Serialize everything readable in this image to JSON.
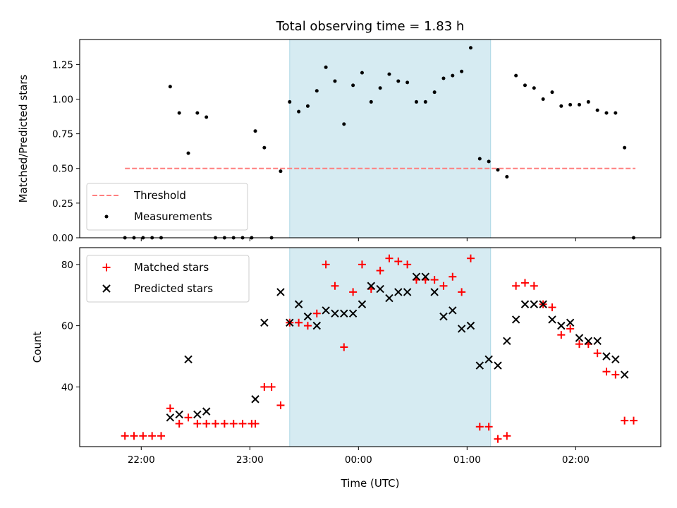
{
  "chart_data": {
    "title": "Total observing time = 1.83 h",
    "xlabel": "Time (UTC)",
    "x_tick_labels": [
      "22:00",
      "23:00",
      "00:00",
      "01:00",
      "02:00"
    ],
    "x_range": [
      "21:26",
      "02:47"
    ],
    "highlight_span": [
      "23:22",
      "01:13"
    ],
    "panels": [
      {
        "type": "scatter",
        "ylabel": "Matched/Predicted stars",
        "ylim": [
          0,
          1.43
        ],
        "y_tick_labels": [
          "0.00",
          "0.25",
          "0.50",
          "0.75",
          "1.00",
          "1.25"
        ],
        "legend_placement": "lower-left",
        "series": [
          {
            "name": "Threshold",
            "style": "dashed-line",
            "color": "#ff7f7f",
            "points": [
              {
                "x": "21:51",
                "y": 0.5
              },
              {
                "x": "02:33",
                "y": 0.5
              }
            ]
          },
          {
            "name": "Measurements",
            "style": "dot",
            "color": "#000000",
            "points": [
              {
                "x": "21:51",
                "y": 0.0
              },
              {
                "x": "21:56",
                "y": 0.0
              },
              {
                "x": "22:01",
                "y": 0.0
              },
              {
                "x": "22:06",
                "y": 0.0
              },
              {
                "x": "22:11",
                "y": 0.0
              },
              {
                "x": "22:16",
                "y": 1.09
              },
              {
                "x": "22:21",
                "y": 0.9
              },
              {
                "x": "22:26",
                "y": 0.61
              },
              {
                "x": "22:31",
                "y": 0.9
              },
              {
                "x": "22:36",
                "y": 0.87
              },
              {
                "x": "22:41",
                "y": 0.0
              },
              {
                "x": "22:46",
                "y": 0.0
              },
              {
                "x": "22:51",
                "y": 0.0
              },
              {
                "x": "22:56",
                "y": 0.0
              },
              {
                "x": "23:01",
                "y": 0.0
              },
              {
                "x": "23:03",
                "y": 0.77
              },
              {
                "x": "23:08",
                "y": 0.65
              },
              {
                "x": "23:12",
                "y": 0.0
              },
              {
                "x": "23:17",
                "y": 0.48
              },
              {
                "x": "23:22",
                "y": 0.98
              },
              {
                "x": "23:27",
                "y": 0.91
              },
              {
                "x": "23:32",
                "y": 0.95
              },
              {
                "x": "23:37",
                "y": 1.06
              },
              {
                "x": "23:42",
                "y": 1.23
              },
              {
                "x": "23:47",
                "y": 1.13
              },
              {
                "x": "23:52",
                "y": 0.82
              },
              {
                "x": "23:57",
                "y": 1.1
              },
              {
                "x": "00:02",
                "y": 1.19
              },
              {
                "x": "00:07",
                "y": 0.98
              },
              {
                "x": "00:12",
                "y": 1.08
              },
              {
                "x": "00:17",
                "y": 1.18
              },
              {
                "x": "00:22",
                "y": 1.13
              },
              {
                "x": "00:27",
                "y": 1.12
              },
              {
                "x": "00:32",
                "y": 0.98
              },
              {
                "x": "00:37",
                "y": 0.98
              },
              {
                "x": "00:42",
                "y": 1.05
              },
              {
                "x": "00:47",
                "y": 1.15
              },
              {
                "x": "00:52",
                "y": 1.17
              },
              {
                "x": "00:57",
                "y": 1.2
              },
              {
                "x": "01:02",
                "y": 1.37
              },
              {
                "x": "01:07",
                "y": 0.57
              },
              {
                "x": "01:12",
                "y": 0.55
              },
              {
                "x": "01:17",
                "y": 0.49
              },
              {
                "x": "01:22",
                "y": 0.44
              },
              {
                "x": "01:27",
                "y": 1.17
              },
              {
                "x": "01:32",
                "y": 1.1
              },
              {
                "x": "01:37",
                "y": 1.08
              },
              {
                "x": "01:42",
                "y": 1.0
              },
              {
                "x": "01:47",
                "y": 1.05
              },
              {
                "x": "01:52",
                "y": 0.95
              },
              {
                "x": "01:57",
                "y": 0.96
              },
              {
                "x": "02:02",
                "y": 0.96
              },
              {
                "x": "02:07",
                "y": 0.98
              },
              {
                "x": "02:12",
                "y": 0.92
              },
              {
                "x": "02:17",
                "y": 0.9
              },
              {
                "x": "02:22",
                "y": 0.9
              },
              {
                "x": "02:27",
                "y": 0.65
              },
              {
                "x": "02:32",
                "y": 0.0
              }
            ]
          }
        ]
      },
      {
        "type": "scatter",
        "ylabel": "Count",
        "ylim": [
          20.5,
          85.5
        ],
        "y_tick_labels": [
          "40",
          "60",
          "80"
        ],
        "legend_placement": "top-left",
        "series": [
          {
            "name": "Matched stars",
            "style": "plus",
            "color": "#ff0000",
            "points": [
              {
                "x": "21:51",
                "y": 24
              },
              {
                "x": "21:56",
                "y": 24
              },
              {
                "x": "22:01",
                "y": 24
              },
              {
                "x": "22:06",
                "y": 24
              },
              {
                "x": "22:11",
                "y": 24
              },
              {
                "x": "22:16",
                "y": 33
              },
              {
                "x": "22:21",
                "y": 28
              },
              {
                "x": "22:26",
                "y": 30
              },
              {
                "x": "22:31",
                "y": 28
              },
              {
                "x": "22:36",
                "y": 28
              },
              {
                "x": "22:41",
                "y": 28
              },
              {
                "x": "22:46",
                "y": 28
              },
              {
                "x": "22:51",
                "y": 28
              },
              {
                "x": "22:56",
                "y": 28
              },
              {
                "x": "23:01",
                "y": 28
              },
              {
                "x": "23:03",
                "y": 28
              },
              {
                "x": "23:08",
                "y": 40
              },
              {
                "x": "23:12",
                "y": 40
              },
              {
                "x": "23:17",
                "y": 34
              },
              {
                "x": "23:22",
                "y": 61
              },
              {
                "x": "23:27",
                "y": 61
              },
              {
                "x": "23:32",
                "y": 60
              },
              {
                "x": "23:37",
                "y": 64
              },
              {
                "x": "23:42",
                "y": 80
              },
              {
                "x": "23:47",
                "y": 73
              },
              {
                "x": "23:52",
                "y": 53
              },
              {
                "x": "23:57",
                "y": 71
              },
              {
                "x": "00:02",
                "y": 80
              },
              {
                "x": "00:07",
                "y": 72
              },
              {
                "x": "00:12",
                "y": 78
              },
              {
                "x": "00:17",
                "y": 82
              },
              {
                "x": "00:22",
                "y": 81
              },
              {
                "x": "00:27",
                "y": 80
              },
              {
                "x": "00:32",
                "y": 75
              },
              {
                "x": "00:37",
                "y": 75
              },
              {
                "x": "00:42",
                "y": 75
              },
              {
                "x": "00:47",
                "y": 73
              },
              {
                "x": "00:52",
                "y": 76
              },
              {
                "x": "00:57",
                "y": 71
              },
              {
                "x": "01:02",
                "y": 82
              },
              {
                "x": "01:07",
                "y": 27
              },
              {
                "x": "01:12",
                "y": 27
              },
              {
                "x": "01:17",
                "y": 23
              },
              {
                "x": "01:22",
                "y": 24
              },
              {
                "x": "01:27",
                "y": 73
              },
              {
                "x": "01:32",
                "y": 74
              },
              {
                "x": "01:37",
                "y": 73
              },
              {
                "x": "01:42",
                "y": 67
              },
              {
                "x": "01:47",
                "y": 66
              },
              {
                "x": "01:52",
                "y": 57
              },
              {
                "x": "01:57",
                "y": 59
              },
              {
                "x": "02:02",
                "y": 54
              },
              {
                "x": "02:07",
                "y": 54
              },
              {
                "x": "02:12",
                "y": 51
              },
              {
                "x": "02:17",
                "y": 45
              },
              {
                "x": "02:22",
                "y": 44
              },
              {
                "x": "02:27",
                "y": 29
              },
              {
                "x": "02:32",
                "y": 29
              }
            ]
          },
          {
            "name": "Predicted stars",
            "style": "x",
            "color": "#000000",
            "points": [
              {
                "x": "22:16",
                "y": 30
              },
              {
                "x": "22:21",
                "y": 31
              },
              {
                "x": "22:26",
                "y": 49
              },
              {
                "x": "22:31",
                "y": 31
              },
              {
                "x": "22:36",
                "y": 32
              },
              {
                "x": "23:03",
                "y": 36
              },
              {
                "x": "23:08",
                "y": 61
              },
              {
                "x": "23:17",
                "y": 71
              },
              {
                "x": "23:22",
                "y": 61
              },
              {
                "x": "23:27",
                "y": 67
              },
              {
                "x": "23:32",
                "y": 63
              },
              {
                "x": "23:37",
                "y": 60
              },
              {
                "x": "23:42",
                "y": 65
              },
              {
                "x": "23:47",
                "y": 64
              },
              {
                "x": "23:52",
                "y": 64
              },
              {
                "x": "23:57",
                "y": 64
              },
              {
                "x": "00:02",
                "y": 67
              },
              {
                "x": "00:07",
                "y": 73
              },
              {
                "x": "00:12",
                "y": 72
              },
              {
                "x": "00:17",
                "y": 69
              },
              {
                "x": "00:22",
                "y": 71
              },
              {
                "x": "00:27",
                "y": 71
              },
              {
                "x": "00:32",
                "y": 76
              },
              {
                "x": "00:37",
                "y": 76
              },
              {
                "x": "00:42",
                "y": 71
              },
              {
                "x": "00:47",
                "y": 63
              },
              {
                "x": "00:52",
                "y": 65
              },
              {
                "x": "00:57",
                "y": 59
              },
              {
                "x": "01:02",
                "y": 60
              },
              {
                "x": "01:07",
                "y": 47
              },
              {
                "x": "01:12",
                "y": 49
              },
              {
                "x": "01:17",
                "y": 47
              },
              {
                "x": "01:22",
                "y": 55
              },
              {
                "x": "01:27",
                "y": 62
              },
              {
                "x": "01:32",
                "y": 67
              },
              {
                "x": "01:37",
                "y": 67
              },
              {
                "x": "01:42",
                "y": 67
              },
              {
                "x": "01:47",
                "y": 62
              },
              {
                "x": "01:52",
                "y": 60
              },
              {
                "x": "01:57",
                "y": 61
              },
              {
                "x": "02:02",
                "y": 56
              },
              {
                "x": "02:07",
                "y": 55
              },
              {
                "x": "02:12",
                "y": 55
              },
              {
                "x": "02:17",
                "y": 50
              },
              {
                "x": "02:22",
                "y": 49
              },
              {
                "x": "02:27",
                "y": 44
              }
            ]
          }
        ]
      }
    ],
    "colors": {
      "highlight": "#add8e6",
      "threshold": "#ff7f7f",
      "matched": "#ff0000",
      "predicted": "#000000"
    }
  }
}
